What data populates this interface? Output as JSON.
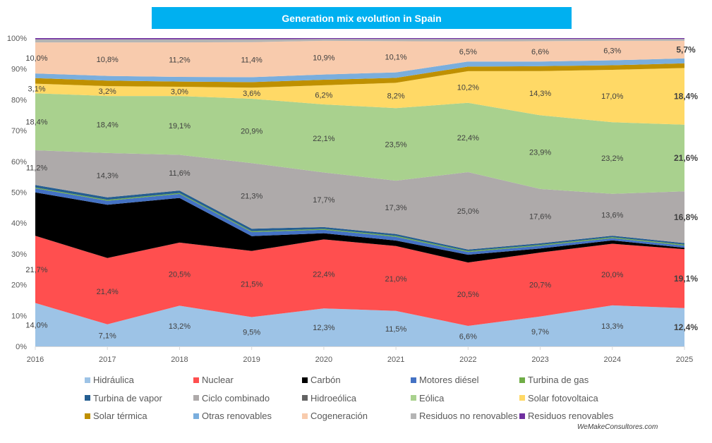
{
  "title": "Generation mix evolution in Spain",
  "watermark": "WeMakeConsultores.com",
  "chart_data": {
    "type": "area",
    "stacked": true,
    "title": "Generation mix evolution in Spain",
    "xlabel": "",
    "ylabel": "",
    "x": [
      "2016",
      "2017",
      "2018",
      "2019",
      "2020",
      "2021",
      "2022",
      "2023",
      "2024",
      "2025"
    ],
    "ylim": [
      0,
      100
    ],
    "yticks": [
      "0%",
      "10%",
      "20%",
      "30%",
      "40%",
      "50%",
      "60%",
      "70%",
      "80%",
      "90%",
      "100%"
    ],
    "grid": false,
    "legend_position": "bottom",
    "series": [
      {
        "name": "Hidráulica",
        "color": "#9dc3e6",
        "show_labels": true,
        "values": [
          14.0,
          7.1,
          13.2,
          9.5,
          12.3,
          11.5,
          6.6,
          9.7,
          13.3,
          12.4
        ]
      },
      {
        "name": "Nuclear",
        "color": "#ff4f4f",
        "show_labels": true,
        "values": [
          21.7,
          21.4,
          20.5,
          21.5,
          22.4,
          21.0,
          20.5,
          20.7,
          20.0,
          19.1
        ]
      },
      {
        "name": "Carbón",
        "color": "#000000",
        "show_labels": false,
        "values": [
          14.0,
          17.2,
          14.5,
          4.8,
          2.0,
          1.8,
          2.5,
          1.3,
          1.1,
          0.5
        ]
      },
      {
        "name": "Motores diésel",
        "color": "#4472c4",
        "show_labels": false,
        "values": [
          1.3,
          1.3,
          1.3,
          1.3,
          1.1,
          1.2,
          0.9,
          0.9,
          0.7,
          0.7
        ]
      },
      {
        "name": "Turbina de gas",
        "color": "#70ad47",
        "show_labels": false,
        "values": [
          0.3,
          0.3,
          0.3,
          0.3,
          0.3,
          0.3,
          0.3,
          0.3,
          0.3,
          0.3
        ]
      },
      {
        "name": "Turbina de vapor",
        "color": "#255e91",
        "show_labels": false,
        "values": [
          0.8,
          0.8,
          0.8,
          0.8,
          0.6,
          0.6,
          0.5,
          0.5,
          0.5,
          0.5
        ]
      },
      {
        "name": "Ciclo combinado",
        "color": "#aeaaaa",
        "show_labels": true,
        "values": [
          11.2,
          14.3,
          11.6,
          21.3,
          17.7,
          17.3,
          25.0,
          17.6,
          13.6,
          16.8
        ]
      },
      {
        "name": "Hidroeólica",
        "color": "#636363",
        "show_labels": false,
        "values": [
          0.0,
          0.0,
          0.0,
          0.0,
          0.0,
          0.0,
          0.0,
          0.0,
          0.0,
          0.0
        ]
      },
      {
        "name": "Eólica",
        "color": "#a9d18e",
        "show_labels": true,
        "values": [
          18.4,
          18.4,
          19.1,
          20.9,
          22.1,
          23.5,
          22.4,
          23.9,
          23.2,
          21.6
        ]
      },
      {
        "name": "Solar fotovoltaica",
        "color": "#ffd966",
        "show_labels": true,
        "values": [
          3.1,
          3.2,
          3.0,
          3.6,
          6.2,
          8.2,
          10.2,
          14.3,
          17.0,
          18.4
        ]
      },
      {
        "name": "Solar térmica",
        "color": "#bf9000",
        "show_labels": false,
        "values": [
          1.8,
          1.8,
          1.7,
          1.8,
          1.8,
          1.6,
          1.5,
          1.6,
          1.5,
          1.5
        ]
      },
      {
        "name": "Otras renovables",
        "color": "#7aaedd",
        "show_labels": false,
        "values": [
          1.5,
          1.5,
          1.5,
          1.6,
          1.7,
          1.8,
          1.6,
          1.5,
          1.6,
          1.6
        ]
      },
      {
        "name": "Cogeneración",
        "color": "#f8cbad",
        "show_labels": true,
        "values": [
          10.0,
          10.8,
          11.2,
          11.4,
          10.9,
          10.1,
          6.5,
          6.6,
          6.3,
          5.7
        ]
      },
      {
        "name": "Residuos no renovables",
        "color": "#b4b4b4",
        "show_labels": false,
        "values": [
          1.0,
          1.0,
          1.0,
          0.9,
          0.6,
          0.7,
          0.8,
          0.7,
          0.6,
          0.6
        ]
      },
      {
        "name": "Residuos renovables",
        "color": "#7030a0",
        "show_labels": false,
        "values": [
          0.4,
          0.4,
          0.4,
          0.4,
          0.3,
          0.3,
          0.3,
          0.3,
          0.3,
          0.3
        ]
      }
    ],
    "data_labels": {
      "Hidráulica": [
        "14,0%",
        "7,1%",
        "13,2%",
        "9,5%",
        "12,3%",
        "11,5%",
        "6,6%",
        "9,7%",
        "13,3%",
        "12,4%"
      ],
      "Nuclear": [
        "21,7%",
        "21,4%",
        "20,5%",
        "21,5%",
        "22,4%",
        "21,0%",
        "20,5%",
        "20,7%",
        "20,0%",
        "19,1%"
      ],
      "Ciclo combinado": [
        "11,2%",
        "14,3%",
        "11,6%",
        "21,3%",
        "17,7%",
        "17,3%",
        "25,0%",
        "17,6%",
        "13,6%",
        "16,8%"
      ],
      "Eólica": [
        "18,4%",
        "18,4%",
        "19,1%",
        "20,9%",
        "22,1%",
        "23,5%",
        "22,4%",
        "23,9%",
        "23,2%",
        "21,6%"
      ],
      "Solar fotovoltaica": [
        "3,1%",
        "3,2%",
        "3,0%",
        "3,6%",
        "6,2%",
        "8,2%",
        "10,2%",
        "14,3%",
        "17,0%",
        "18,4%"
      ],
      "Cogeneración": [
        "10,0%",
        "10,8%",
        "11,2%",
        "11,4%",
        "10,9%",
        "10,1%",
        "6,5%",
        "6,6%",
        "6,3%",
        "5,7%"
      ]
    },
    "bold_label_category": "2025"
  },
  "legend": {
    "rows": [
      [
        "Hidráulica",
        "Nuclear",
        "Carbón",
        "Motores diésel",
        "Turbina de gas"
      ],
      [
        "Turbina de vapor",
        "Ciclo combinado",
        "Hidroeólica",
        "Eólica",
        "Solar fotovoltaica"
      ],
      [
        "Solar térmica",
        "Otras renovables",
        "Cogeneración",
        "Residuos no renovables",
        "Residuos renovables"
      ]
    ]
  }
}
